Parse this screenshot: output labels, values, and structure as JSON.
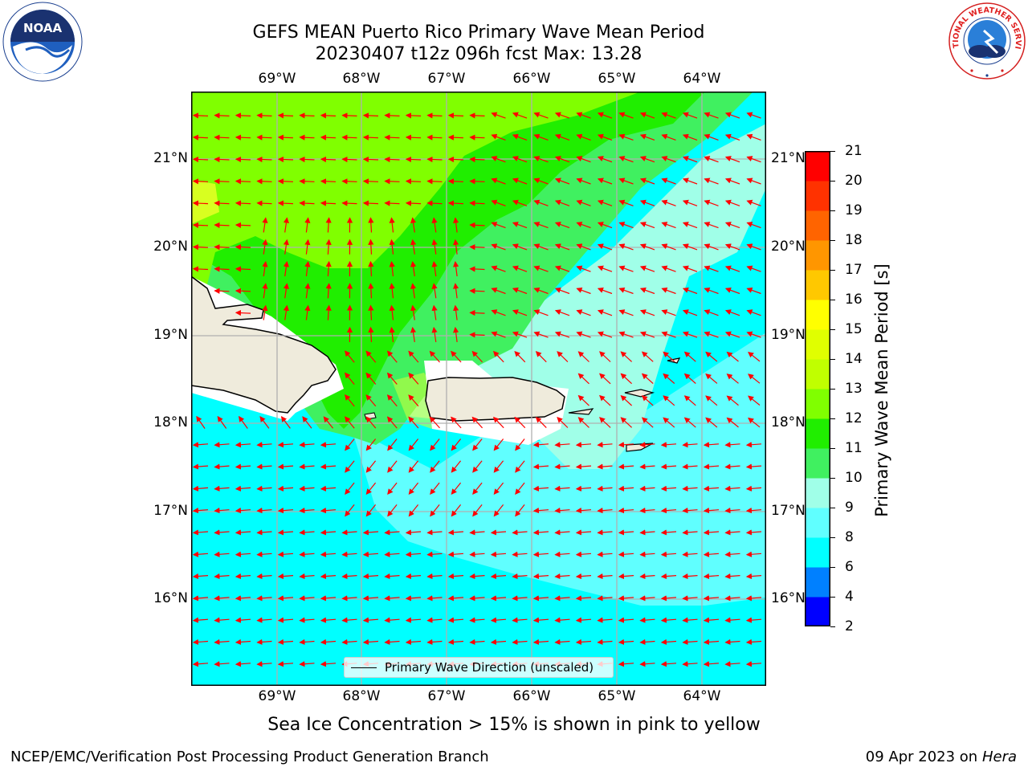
{
  "title": {
    "line1": "GEFS MEAN Puerto Rico Primary Wave Mean Period",
    "line2": "20230407 t12z 096h fcst   Max: 13.28"
  },
  "map": {
    "lon_labels": [
      "69°W",
      "68°W",
      "67°W",
      "66°W",
      "65°W",
      "64°W"
    ],
    "lat_labels": [
      "21°N",
      "20°N",
      "19°N",
      "18°N",
      "17°N",
      "16°N"
    ],
    "legend_label": "Primary Wave Direction (unscaled)",
    "arrow_color": "#ff0000"
  },
  "colorbar": {
    "label": "Primary Wave Mean Period [s]",
    "ticks": [
      "2",
      "4",
      "6",
      "8",
      "9",
      "10",
      "11",
      "12",
      "13",
      "14",
      "15",
      "16",
      "17",
      "18",
      "19",
      "20",
      "21"
    ],
    "colors": [
      "#0000ff",
      "#0080ff",
      "#00ffff",
      "#60ffff",
      "#a0ffe8",
      "#40f060",
      "#20ee00",
      "#80ff00",
      "#c0ff00",
      "#e0ff00",
      "#ffff00",
      "#ffc800",
      "#ff9600",
      "#ff6400",
      "#ff3200",
      "#ff0000"
    ]
  },
  "footnote": "Sea Ice Concentration > 15% is shown in pink to yellow",
  "credit": {
    "left": "NCEP/EMC/Verification Post Processing Product Generation Branch",
    "right_date": "09 Apr 2023 on ",
    "right_host": "Hera"
  },
  "logos": {
    "noaa": "NOAA",
    "nws": "NATIONAL WEATHER SERVICE"
  }
}
